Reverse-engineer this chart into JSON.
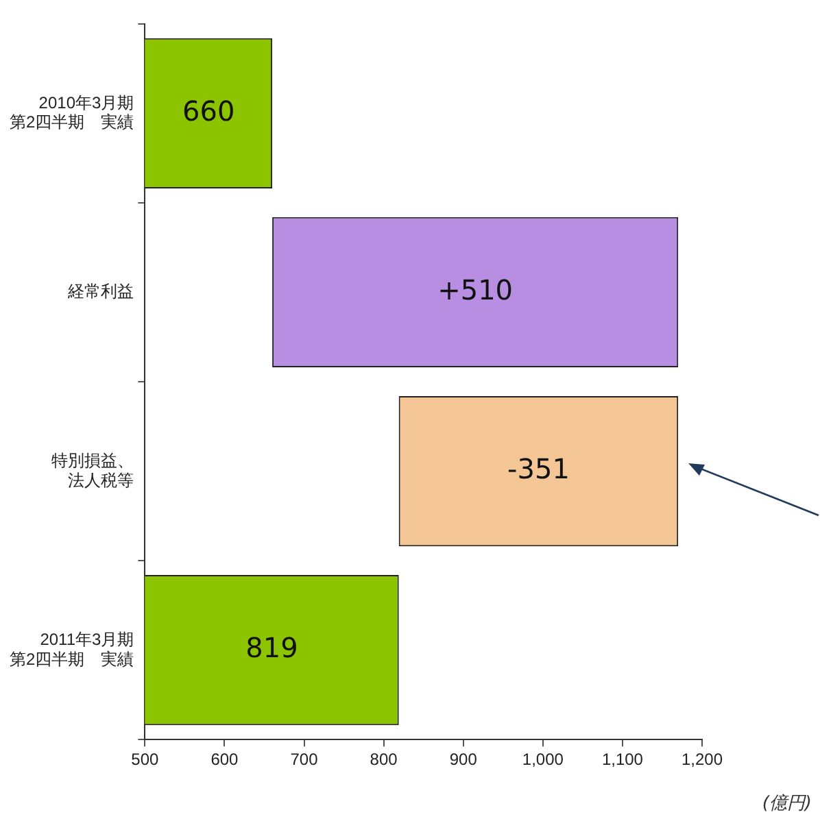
{
  "chart_data": {
    "type": "bar",
    "orientation": "horizontal",
    "categories": [
      "2010年3月期第2四半期　実績",
      "経常利益",
      "特別損益、法人税等",
      "2011年3月期第2四半期　実績"
    ],
    "values": [
      660,
      510,
      -351,
      819
    ],
    "base": [
      null,
      660,
      1170,
      null
    ],
    "colors": [
      "#8cc400",
      "#b88ee2",
      "#f4c595",
      "#8cc400"
    ],
    "value_labels": [
      "660",
      "+510",
      "-351",
      "819"
    ],
    "xlim": [
      500,
      1200
    ],
    "xticks": [
      500,
      600,
      700,
      800,
      900,
      {
        "value": 1000,
        "label": "1,000"
      },
      {
        "value": 1100,
        "label": "1,100"
      },
      {
        "value": 1200,
        "label": "1,200"
      }
    ],
    "grid": false,
    "legend": false,
    "annotations": [
      "(億円)"
    ]
  }
}
